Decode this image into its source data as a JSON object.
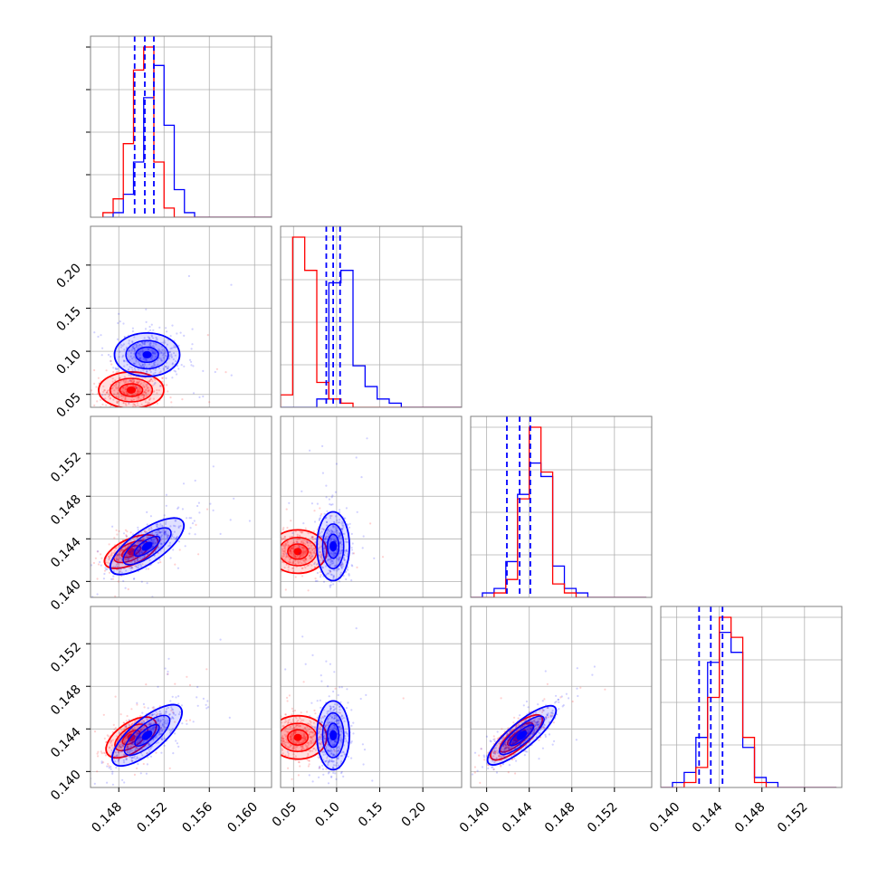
{
  "colors": {
    "series_a": "#ff0000",
    "series_b": "#0000ff",
    "grid": "#b0b0b0",
    "frame": "#808080"
  },
  "chart_data": {
    "type": "corner",
    "parameters": 4,
    "grid": true,
    "series": [
      {
        "color": "#ff0000"
      },
      {
        "color": "#0000ff"
      }
    ],
    "quantile_lines": {
      "color": "#0000ff",
      "style": "dashed",
      "p0": [
        0.1494,
        0.1503,
        0.1511
      ],
      "p1": [
        0.088,
        0.096,
        0.104
      ],
      "p2": [
        0.1419,
        0.1431,
        0.1441
      ],
      "p3": [
        0.1421,
        0.1432,
        0.1443
      ]
    },
    "axes": {
      "p0": {
        "range": [
          0.1455,
          0.1615
        ],
        "ticks": [
          "0.148",
          "0.152",
          "0.156",
          "0.160"
        ]
      },
      "p1": {
        "range": [
          0.035,
          0.245
        ],
        "ticks": [
          "0.05",
          "0.10",
          "0.15",
          "0.20"
        ]
      },
      "p2": {
        "range": [
          0.1385,
          0.1555
        ],
        "ticks": [
          "0.140",
          "0.144",
          "0.148",
          "0.152"
        ]
      },
      "p3": {
        "range": [
          0.1385,
          0.1555
        ],
        "ticks": [
          "0.140",
          "0.144",
          "0.148",
          "0.152"
        ]
      }
    },
    "histograms": [
      {
        "param": "p0",
        "bin_width": 0.0009,
        "bin_start": 0.1466,
        "red": [
          1,
          4,
          16,
          32,
          37,
          12,
          2,
          0,
          0,
          0,
          0,
          0,
          0,
          0,
          0,
          0,
          0,
          0
        ],
        "blue": [
          0,
          1,
          5,
          12,
          26,
          33,
          20,
          6,
          1,
          0,
          0,
          0,
          0,
          0,
          0,
          0,
          0,
          0
        ]
      },
      {
        "param": "p1",
        "bin_width": 0.014,
        "bin_start": 0.035,
        "red": [
          3,
          41,
          33,
          6,
          2,
          1,
          0,
          0,
          0,
          0,
          0,
          0,
          0,
          0,
          0
        ],
        "blue": [
          0,
          0,
          0,
          2,
          30,
          33,
          10,
          5,
          2,
          1,
          0,
          0,
          0,
          0,
          0
        ]
      },
      {
        "param": "p2",
        "bin_width": 0.0011,
        "bin_start": 0.1385,
        "red": [
          0,
          0,
          1,
          4,
          22,
          38,
          28,
          3,
          1,
          0,
          0,
          0,
          0,
          0,
          0
        ],
        "blue": [
          0,
          1,
          2,
          8,
          23,
          30,
          27,
          7,
          2,
          1,
          0,
          0,
          0,
          0,
          0
        ]
      },
      {
        "param": "p3",
        "bin_width": 0.0011,
        "bin_start": 0.1385,
        "red": [
          0,
          0,
          1,
          4,
          18,
          34,
          30,
          10,
          1,
          0,
          0,
          0,
          0,
          0,
          0
        ],
        "blue": [
          0,
          1,
          3,
          10,
          25,
          31,
          27,
          8,
          2,
          1,
          0,
          0,
          0,
          0,
          0
        ]
      }
    ],
    "posterior_means": {
      "red": {
        "p0": 0.1491,
        "p1": 0.055,
        "p2": 0.1428,
        "p3": 0.1432
      },
      "blue": {
        "p0": 0.1505,
        "p1": 0.096,
        "p2": 0.1433,
        "p3": 0.1434
      }
    }
  }
}
